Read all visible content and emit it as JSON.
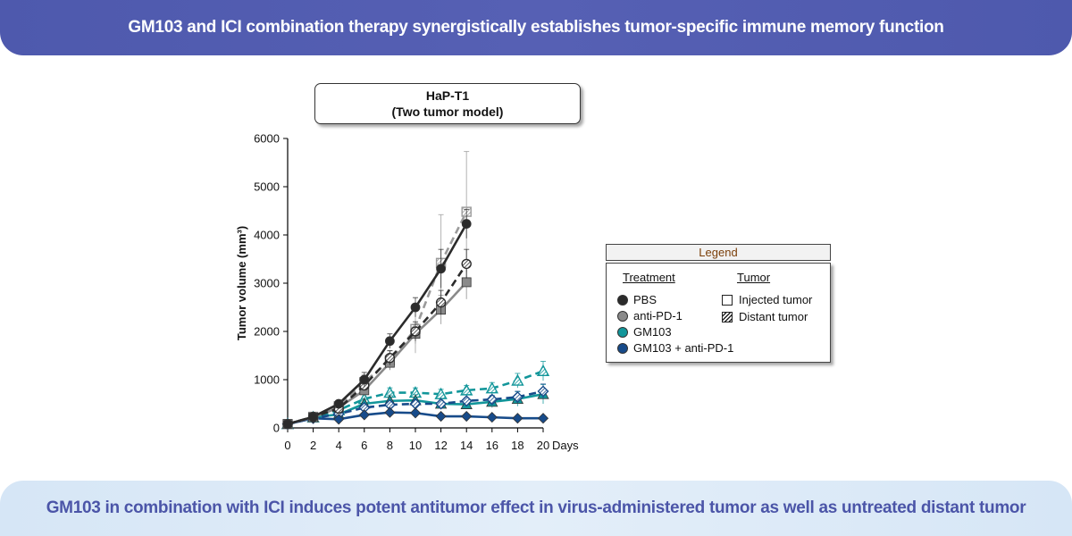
{
  "header": {
    "text": "GM103 and ICI combination therapy synergistically establishes tumor-specific immune memory function"
  },
  "footer": {
    "text": "GM103 in combination with ICI induces potent antitumor effect in virus-administered tumor as well as untreated distant tumor"
  },
  "panel": {
    "line1": "HaP-T1",
    "line2": "(Two tumor model)"
  },
  "legend": {
    "title": "Legend",
    "treatment_heading": "Treatment",
    "tumor_heading": "Tumor",
    "treatments": [
      {
        "label": "PBS",
        "color": "#2b2b2b"
      },
      {
        "label": "anti-PD-1",
        "color": "#8a8a8a"
      },
      {
        "label": "GM103",
        "color": "#12969a"
      },
      {
        "label": "GM103 + anti-PD-1",
        "color": "#174b8a"
      }
    ],
    "tumors": [
      {
        "label": "Injected tumor",
        "icon": "open-square-icon"
      },
      {
        "label": "Distant tumor",
        "icon": "hatched-square-icon"
      }
    ]
  },
  "chart_data": {
    "type": "line",
    "title": "HaP-T1 (Two tumor model)",
    "xlabel": "Days",
    "ylabel": "Tumor volume (mm³)",
    "xlim": [
      0,
      20
    ],
    "ylim": [
      0,
      6000
    ],
    "xticks": [
      "0",
      "2",
      "4",
      "6",
      "8",
      "10",
      "12",
      "14",
      "16",
      "18",
      "20"
    ],
    "yticks": [
      "0",
      "1000",
      "2000",
      "3000",
      "4000",
      "5000",
      "6000"
    ],
    "grid": false,
    "legend_position": "right",
    "series": [
      {
        "name": "PBS - Injected tumor",
        "color": "#2b2b2b",
        "dash": false,
        "marker": "circle",
        "x": [
          0,
          2,
          4,
          6,
          8,
          10,
          12,
          14
        ],
        "y": [
          80,
          230,
          500,
          1000,
          1800,
          2500,
          3300,
          4230
        ],
        "err": [
          0,
          30,
          60,
          150,
          150,
          200,
          400,
          300
        ]
      },
      {
        "name": "PBS - Distant tumor",
        "color": "#2b2b2b",
        "dash": true,
        "marker": "hatched-circle",
        "x": [
          0,
          2,
          4,
          6,
          8,
          10,
          12,
          14
        ],
        "y": [
          80,
          230,
          400,
          880,
          1450,
          2000,
          2600,
          3400
        ],
        "err": [
          0,
          30,
          60,
          100,
          150,
          200,
          250,
          300
        ]
      },
      {
        "name": "anti-PD-1 - Injected tumor",
        "color": "#8a8a8a",
        "dash": false,
        "marker": "square",
        "x": [
          0,
          2,
          4,
          6,
          8,
          10,
          12,
          14
        ],
        "y": [
          80,
          220,
          420,
          780,
          1350,
          1950,
          2450,
          3020
        ],
        "err": [
          0,
          30,
          50,
          120,
          150,
          200,
          300,
          350
        ]
      },
      {
        "name": "anti-PD-1 - Distant tumor",
        "color": "#9a9a9a",
        "dash": true,
        "marker": "hatched-square",
        "x": [
          0,
          2,
          4,
          6,
          8,
          10,
          12,
          14
        ],
        "y": [
          80,
          230,
          450,
          950,
          1400,
          2050,
          3420,
          4480
        ],
        "err": [
          0,
          30,
          60,
          150,
          200,
          500,
          1000,
          1250
        ]
      },
      {
        "name": "GM103 - Injected tumor",
        "color": "#12969a",
        "dash": false,
        "marker": "triangle",
        "x": [
          0,
          2,
          4,
          6,
          8,
          10,
          12,
          14,
          16,
          18,
          20
        ],
        "y": [
          80,
          220,
          280,
          500,
          560,
          570,
          500,
          490,
          540,
          600,
          700
        ],
        "err": [
          0,
          30,
          60,
          100,
          120,
          120,
          100,
          100,
          120,
          150,
          200
        ]
      },
      {
        "name": "GM103 - Distant tumor",
        "color": "#12969a",
        "dash": true,
        "marker": "hatched-triangle",
        "x": [
          0,
          2,
          4,
          6,
          8,
          10,
          12,
          14,
          16,
          18,
          20
        ],
        "y": [
          80,
          220,
          370,
          600,
          730,
          730,
          700,
          780,
          820,
          980,
          1180
        ],
        "err": [
          0,
          30,
          60,
          100,
          100,
          100,
          100,
          100,
          120,
          150,
          200
        ]
      },
      {
        "name": "GM103 + anti-PD-1 - Injected tumor",
        "color": "#174b8a",
        "dash": false,
        "marker": "diamond",
        "x": [
          0,
          2,
          4,
          6,
          8,
          10,
          12,
          14,
          16,
          18,
          20
        ],
        "y": [
          80,
          200,
          180,
          270,
          320,
          310,
          240,
          240,
          220,
          200,
          200
        ],
        "err": [
          0,
          20,
          30,
          40,
          40,
          40,
          30,
          30,
          30,
          30,
          30
        ]
      },
      {
        "name": "GM103 + anti-PD-1 - Distant tumor",
        "color": "#174b8a",
        "dash": true,
        "marker": "hatched-diamond",
        "x": [
          0,
          2,
          4,
          6,
          8,
          10,
          12,
          14,
          16,
          18,
          20
        ],
        "y": [
          80,
          200,
          290,
          420,
          480,
          500,
          500,
          560,
          590,
          640,
          760
        ],
        "err": [
          0,
          30,
          40,
          60,
          60,
          60,
          60,
          60,
          80,
          120,
          150
        ]
      }
    ]
  }
}
